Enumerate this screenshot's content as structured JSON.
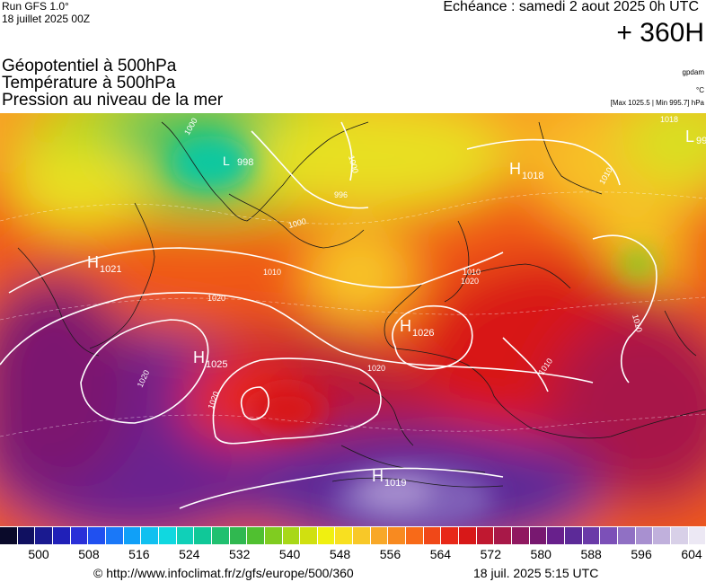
{
  "header": {
    "model": "Run GFS 1.0°",
    "run_date": "18 juillet 2025 00Z",
    "valid_time": "Echéance : samedi 2 aout 2025 0h UTC",
    "range": "+ 360H"
  },
  "titles": {
    "line1": "Géopotentiel à 500hPa",
    "line2": "Température à 500hPa",
    "line3": "Pression au niveau de la mer"
  },
  "units": {
    "geopotential": "gpdam",
    "temperature": "°C",
    "pressure_range": "[Max 1025.5 | Min 995.7] hPa"
  },
  "map": {
    "pressure_centers": [
      {
        "type": "H",
        "value": "1018"
      },
      {
        "type": "H",
        "value": "1021"
      },
      {
        "type": "H",
        "value": "1026"
      },
      {
        "type": "H",
        "value": "1025"
      },
      {
        "type": "H",
        "value": "1019"
      },
      {
        "type": "L",
        "value": "998"
      },
      {
        "type": "L",
        "value": "99"
      }
    ],
    "isobar_labels": [
      "1000",
      "1000",
      "1000",
      "996",
      "1010",
      "1010",
      "1010",
      "1010",
      "1020",
      "1020",
      "1020",
      "1020",
      "1020",
      "1010",
      "1018"
    ]
  },
  "colorbar": {
    "ticks": [
      "500",
      "508",
      "516",
      "524",
      "532",
      "540",
      "548",
      "556",
      "564",
      "572",
      "580",
      "588",
      "596",
      "604"
    ],
    "colors": [
      "#0a0a2a",
      "#101060",
      "#1a1a90",
      "#2020b8",
      "#2a30d8",
      "#2050f0",
      "#1a78f8",
      "#10a0f8",
      "#10c0f0",
      "#10d8e0",
      "#10d0b8",
      "#10c898",
      "#20c070",
      "#30b850",
      "#50c030",
      "#80cc20",
      "#a8d818",
      "#d0e010",
      "#f0f010",
      "#f8e020",
      "#f8c828",
      "#f8a828",
      "#f88a20",
      "#f86a18",
      "#f04818",
      "#e82818",
      "#d81818",
      "#c01830",
      "#a81848",
      "#901860",
      "#781870",
      "#68208c",
      "#5c2a98",
      "#6a3aa8",
      "#7c50b8",
      "#9070c4",
      "#a890d0",
      "#c0b0dc",
      "#d8d0e8",
      "#ece8f4"
    ]
  },
  "footer": {
    "url": "© http://www.infoclimat.fr/z/gfs/europe/500/360",
    "timestamp": "18 juil. 2025  5:15 UTC"
  }
}
